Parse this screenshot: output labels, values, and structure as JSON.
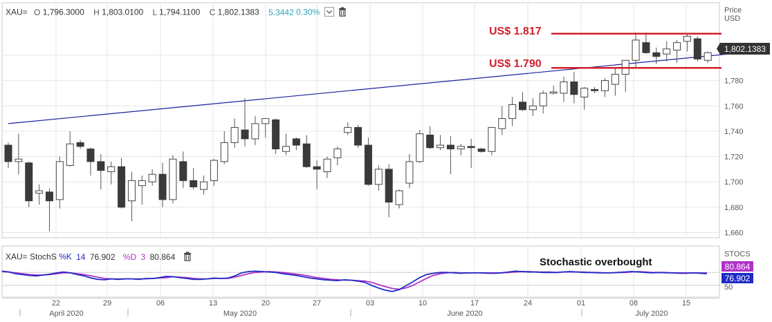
{
  "header": {
    "symbol": "XAU=",
    "open_label": "O",
    "open": "1,796.3000",
    "high_label": "H",
    "high": "1,803.0100",
    "low_label": "L",
    "low": "1,794.1100",
    "close_label": "C",
    "close": "1,802.1383",
    "change": "5.3442",
    "change_pct": "0.30%",
    "dropdown_icon": "chevron-down-icon",
    "delete_icon": "trash-icon"
  },
  "price_axis": {
    "title_line1": "Price",
    "title_line2": "USD",
    "last_price_tag": "1,802.1383"
  },
  "stoch_header": {
    "symbol": "XAU=",
    "name": "StochS",
    "k_label": "%K",
    "k_period": "14",
    "k_value": "76.902",
    "d_label": "%D",
    "d_period": "3",
    "d_value": "80.864",
    "delete_icon": "trash-icon"
  },
  "stoch_axis": {
    "title": "STOCS",
    "d_tag": "80.864",
    "k_tag": "76.902",
    "tick_50": "50"
  },
  "annotations": {
    "upper_level": "US$ 1.817",
    "lower_level": "US$ 1.790",
    "stoch_note": "Stochastic overbought"
  },
  "colors": {
    "up_body": "#ffffff",
    "down_body": "#3a3a3a",
    "wick": "#555555",
    "trendline": "#1a1f9e",
    "level_line": "#d0202a",
    "annotation_text": "#d0202a",
    "stoch_k": "#1f2bc4",
    "stoch_d": "#b030c8",
    "grid": "#e6e6e6"
  },
  "x_axis": {
    "day_ticks": [
      "22",
      "29",
      "06",
      "13",
      "20",
      "27",
      "03",
      "10",
      "17",
      "24",
      "01",
      "08",
      "15"
    ],
    "month_labels": [
      "April 2020",
      "May 2020",
      "June 2020",
      "July 2020"
    ]
  },
  "chart_data": [
    {
      "type": "candlestick",
      "title": "",
      "ylabel": "Price USD",
      "ylim": [
        1655,
        1810
      ],
      "y_ticks": [
        "1,660",
        "1,680",
        "1,700",
        "1,720",
        "1,740",
        "1,760",
        "1,780"
      ],
      "horizontal_levels": [
        1817,
        1790
      ],
      "trendline": {
        "from": [
          0,
          1746
        ],
        "to": [
          71.3,
          1802
        ]
      },
      "candles": [
        {
          "o": 1729,
          "h": 1731,
          "l": 1711,
          "c": 1716
        },
        {
          "o": 1716,
          "h": 1738,
          "l": 1706,
          "c": 1718
        },
        {
          "o": 1715,
          "h": 1716,
          "l": 1680,
          "c": 1685
        },
        {
          "o": 1691,
          "h": 1698,
          "l": 1682,
          "c": 1693
        },
        {
          "o": 1692,
          "h": 1695,
          "l": 1661,
          "c": 1685
        },
        {
          "o": 1686,
          "h": 1720,
          "l": 1679,
          "c": 1716
        },
        {
          "o": 1713,
          "h": 1740,
          "l": 1712,
          "c": 1730
        },
        {
          "o": 1731,
          "h": 1733,
          "l": 1726,
          "c": 1728
        },
        {
          "o": 1726,
          "h": 1727,
          "l": 1705,
          "c": 1716
        },
        {
          "o": 1716,
          "h": 1722,
          "l": 1694,
          "c": 1709
        },
        {
          "o": 1708,
          "h": 1716,
          "l": 1698,
          "c": 1712
        },
        {
          "o": 1712,
          "h": 1719,
          "l": 1679,
          "c": 1680
        },
        {
          "o": 1685,
          "h": 1708,
          "l": 1669,
          "c": 1701
        },
        {
          "o": 1697,
          "h": 1705,
          "l": 1682,
          "c": 1701
        },
        {
          "o": 1700,
          "h": 1710,
          "l": 1697,
          "c": 1706
        },
        {
          "o": 1706,
          "h": 1715,
          "l": 1680,
          "c": 1686
        },
        {
          "o": 1686,
          "h": 1721,
          "l": 1683,
          "c": 1718
        },
        {
          "o": 1716,
          "h": 1724,
          "l": 1695,
          "c": 1701
        },
        {
          "o": 1701,
          "h": 1711,
          "l": 1694,
          "c": 1696
        },
        {
          "o": 1694,
          "h": 1705,
          "l": 1690,
          "c": 1700
        },
        {
          "o": 1701,
          "h": 1718,
          "l": 1697,
          "c": 1717
        },
        {
          "o": 1716,
          "h": 1740,
          "l": 1714,
          "c": 1731
        },
        {
          "o": 1731,
          "h": 1750,
          "l": 1727,
          "c": 1743
        },
        {
          "o": 1741,
          "h": 1766,
          "l": 1728,
          "c": 1734
        },
        {
          "o": 1734,
          "h": 1752,
          "l": 1729,
          "c": 1746
        },
        {
          "o": 1746,
          "h": 1750,
          "l": 1735,
          "c": 1750
        },
        {
          "o": 1749,
          "h": 1750,
          "l": 1722,
          "c": 1726
        },
        {
          "o": 1724,
          "h": 1738,
          "l": 1721,
          "c": 1728
        },
        {
          "o": 1734,
          "h": 1735,
          "l": 1725,
          "c": 1729
        },
        {
          "o": 1730,
          "h": 1737,
          "l": 1711,
          "c": 1712
        },
        {
          "o": 1712,
          "h": 1717,
          "l": 1694,
          "c": 1710
        },
        {
          "o": 1708,
          "h": 1720,
          "l": 1703,
          "c": 1718
        },
        {
          "o": 1719,
          "h": 1728,
          "l": 1713,
          "c": 1726
        },
        {
          "o": 1739,
          "h": 1747,
          "l": 1737,
          "c": 1743
        },
        {
          "o": 1743,
          "h": 1745,
          "l": 1727,
          "c": 1729
        },
        {
          "o": 1729,
          "h": 1735,
          "l": 1697,
          "c": 1698
        },
        {
          "o": 1698,
          "h": 1713,
          "l": 1693,
          "c": 1710
        },
        {
          "o": 1710,
          "h": 1714,
          "l": 1672,
          "c": 1684
        },
        {
          "o": 1682,
          "h": 1694,
          "l": 1679,
          "c": 1693
        },
        {
          "o": 1699,
          "h": 1722,
          "l": 1695,
          "c": 1716
        },
        {
          "o": 1716,
          "h": 1741,
          "l": 1715,
          "c": 1738
        },
        {
          "o": 1737,
          "h": 1744,
          "l": 1726,
          "c": 1727
        },
        {
          "o": 1727,
          "h": 1737,
          "l": 1725,
          "c": 1729
        },
        {
          "o": 1729,
          "h": 1736,
          "l": 1706,
          "c": 1726
        },
        {
          "o": 1726,
          "h": 1730,
          "l": 1721,
          "c": 1728
        },
        {
          "o": 1728,
          "h": 1734,
          "l": 1711,
          "c": 1727
        },
        {
          "o": 1726,
          "h": 1727,
          "l": 1723,
          "c": 1724
        },
        {
          "o": 1724,
          "h": 1743,
          "l": 1721,
          "c": 1743
        },
        {
          "o": 1742,
          "h": 1760,
          "l": 1737,
          "c": 1750
        },
        {
          "o": 1750,
          "h": 1767,
          "l": 1744,
          "c": 1761
        },
        {
          "o": 1763,
          "h": 1771,
          "l": 1756,
          "c": 1757
        },
        {
          "o": 1757,
          "h": 1766,
          "l": 1752,
          "c": 1760
        },
        {
          "o": 1760,
          "h": 1772,
          "l": 1754,
          "c": 1770
        },
        {
          "o": 1770,
          "h": 1776,
          "l": 1769,
          "c": 1771
        },
        {
          "o": 1770,
          "h": 1783,
          "l": 1763,
          "c": 1779
        },
        {
          "o": 1779,
          "h": 1787,
          "l": 1762,
          "c": 1769
        },
        {
          "o": 1767,
          "h": 1775,
          "l": 1757,
          "c": 1774
        },
        {
          "o": 1773,
          "h": 1775,
          "l": 1770,
          "c": 1772
        },
        {
          "o": 1772,
          "h": 1782,
          "l": 1767,
          "c": 1780
        },
        {
          "o": 1777,
          "h": 1790,
          "l": 1768,
          "c": 1785
        },
        {
          "o": 1785,
          "h": 1796,
          "l": 1771,
          "c": 1796
        },
        {
          "o": 1796,
          "h": 1818,
          "l": 1790,
          "c": 1812
        },
        {
          "o": 1810,
          "h": 1818,
          "l": 1801,
          "c": 1802
        },
        {
          "o": 1802,
          "h": 1806,
          "l": 1793,
          "c": 1799
        },
        {
          "o": 1801,
          "h": 1811,
          "l": 1795,
          "c": 1805
        },
        {
          "o": 1804,
          "h": 1812,
          "l": 1794,
          "c": 1810
        },
        {
          "o": 1811,
          "h": 1817,
          "l": 1803,
          "c": 1815
        },
        {
          "o": 1813,
          "h": 1815,
          "l": 1795,
          "c": 1797
        },
        {
          "o": 1796,
          "h": 1803,
          "l": 1794,
          "c": 1802
        }
      ]
    },
    {
      "type": "line",
      "title": "",
      "ylabel": "STOCS",
      "ylim": [
        0,
        100
      ],
      "series": [
        {
          "name": "%K",
          "values": [
            83,
            81,
            77,
            75,
            73,
            72,
            74,
            76,
            79,
            81,
            79,
            75,
            72,
            67,
            64,
            63,
            65,
            64,
            65,
            65,
            64,
            66,
            66,
            68,
            71,
            70,
            68,
            66,
            64,
            64,
            65,
            67,
            66,
            67,
            72,
            79,
            82,
            83,
            82,
            81,
            80,
            77,
            75,
            73,
            70,
            67,
            65,
            63,
            62,
            61,
            63,
            62,
            60,
            57,
            50,
            44,
            39,
            36,
            40,
            49,
            58,
            68,
            75,
            78,
            80,
            80,
            79,
            78,
            79,
            79,
            79,
            78,
            78,
            79,
            81,
            83,
            82,
            81,
            81,
            80,
            80,
            80,
            81,
            82,
            81,
            80,
            80,
            79,
            79,
            79,
            80,
            81,
            82,
            81,
            80,
            79,
            80,
            79,
            79,
            78,
            78,
            79,
            78,
            77
          ]
        },
        {
          "name": "%D",
          "values": [
            82,
            81,
            79,
            77,
            75,
            74,
            74,
            75,
            77,
            79,
            79,
            77,
            75,
            72,
            69,
            66,
            65,
            65,
            65,
            65,
            65,
            65,
            66,
            67,
            68,
            70,
            69,
            68,
            66,
            65,
            65,
            66,
            66,
            66,
            69,
            73,
            77,
            80,
            81,
            82,
            81,
            80,
            78,
            76,
            74,
            71,
            68,
            66,
            64,
            63,
            62,
            62,
            61,
            60,
            57,
            52,
            47,
            43,
            41,
            44,
            50,
            58,
            66,
            73,
            77,
            79,
            80,
            79,
            79,
            79,
            79,
            79,
            79,
            79,
            80,
            81,
            82,
            82,
            81,
            81,
            81,
            80,
            81,
            81,
            81,
            81,
            80,
            80,
            79,
            79,
            80,
            80,
            81,
            82,
            81,
            80,
            80,
            80,
            79,
            79,
            79,
            79,
            79,
            79
          ]
        }
      ]
    }
  ]
}
